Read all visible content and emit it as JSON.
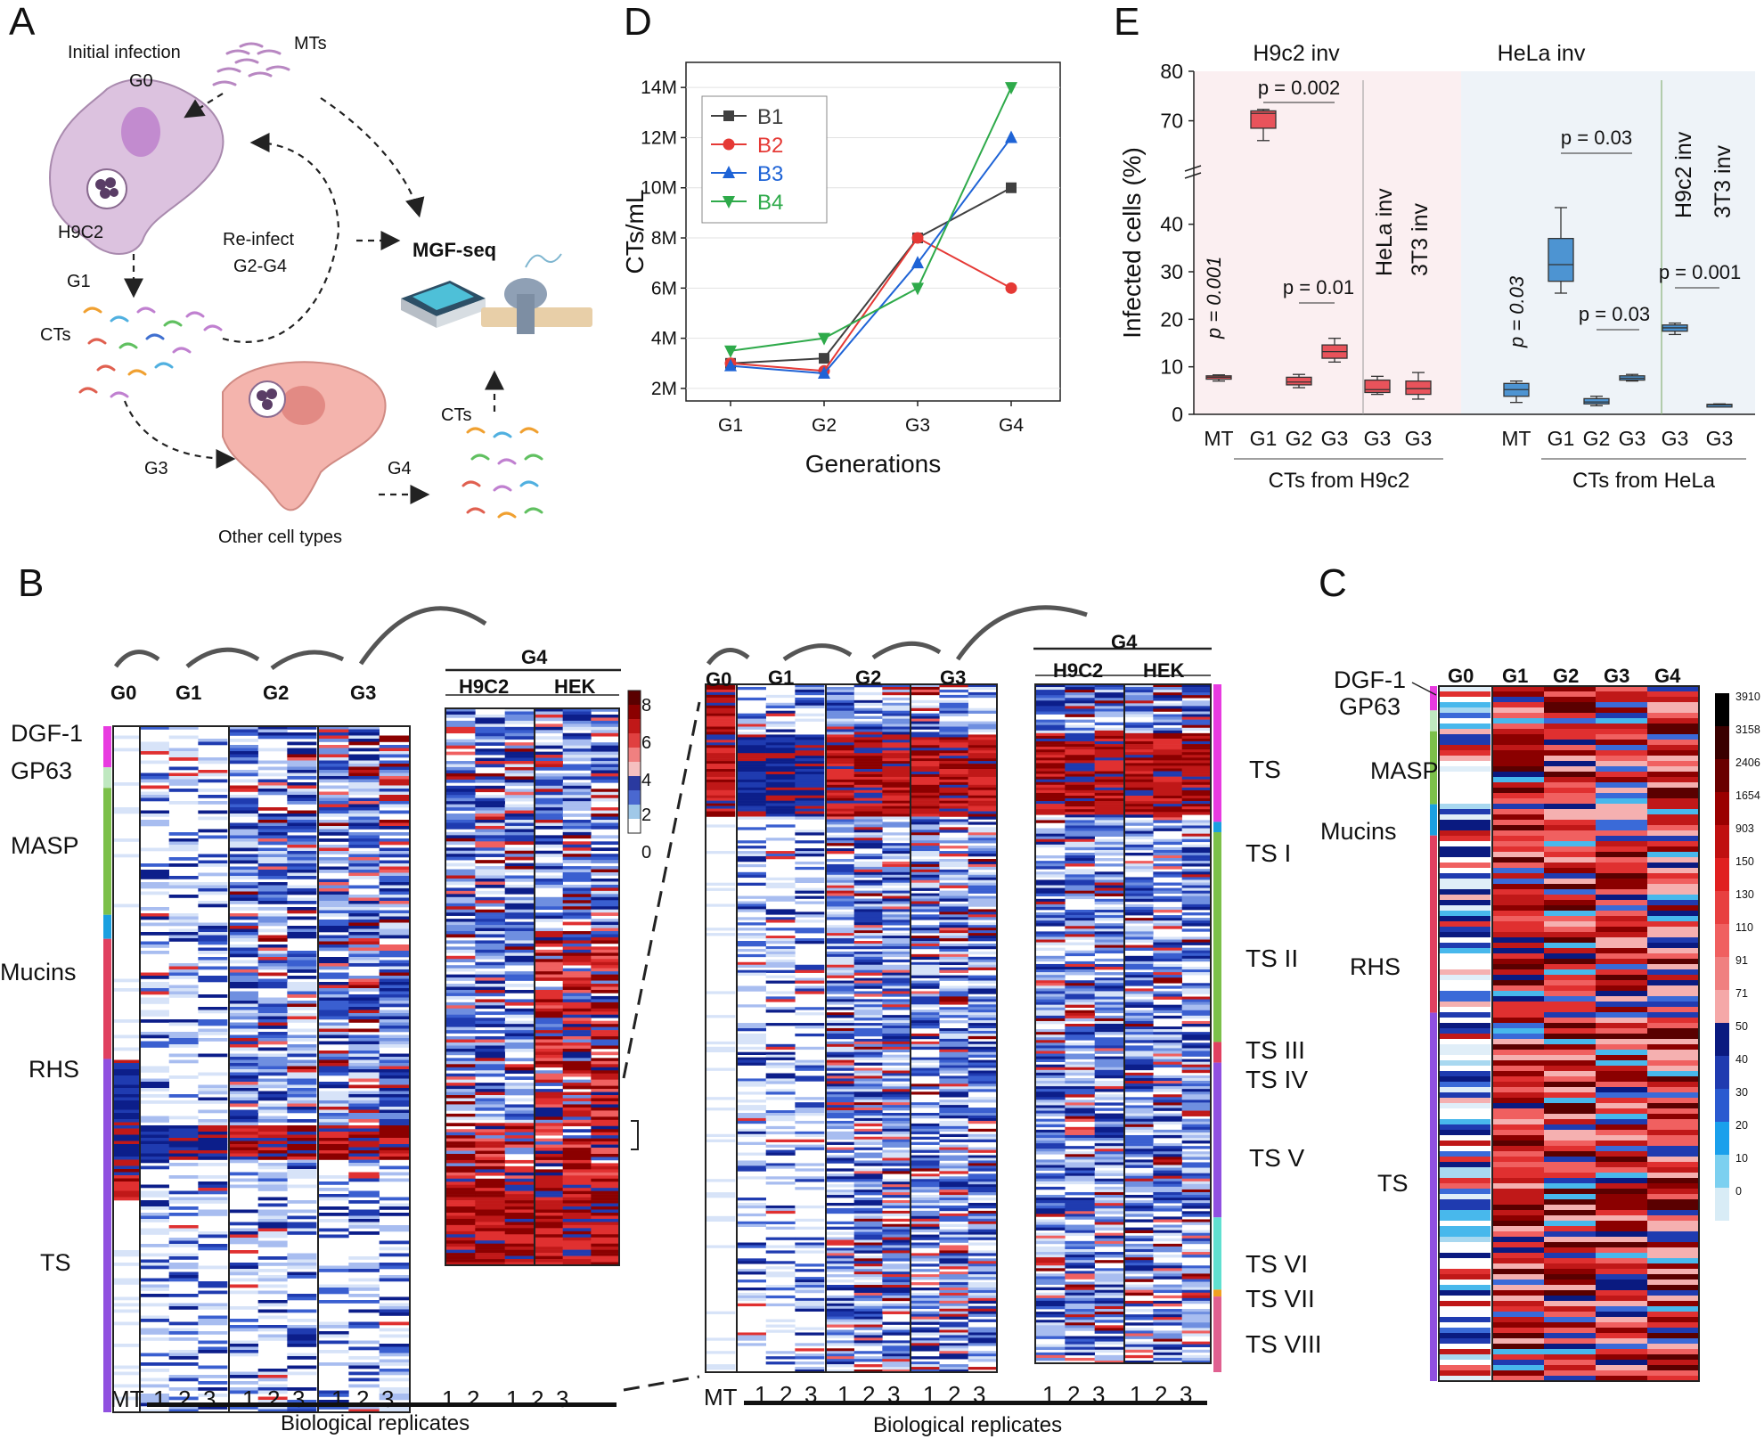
{
  "panels": {
    "A": "A",
    "B": "B",
    "C": "C",
    "D": "D",
    "E": "E"
  },
  "panelA": {
    "initial_infection": "Initial infection",
    "g0": "G0",
    "mts": "MTs",
    "h9c2": "H9C2",
    "g1": "G1",
    "reinfect": "Re-infect",
    "g2g4": "G2-G4",
    "mgfseq": "MGF-seq",
    "cts1": "CTs",
    "cts2": "CTs",
    "g3": "G3",
    "g4": "G4",
    "other_cells": "Other cell types"
  },
  "panelB": {
    "gen_labels": [
      "G0",
      "G1",
      "G2",
      "G3"
    ],
    "g4": "G4",
    "h9c2": "H9C2",
    "hek": "HEK",
    "families": [
      "DGF-1",
      "GP63",
      "MASP",
      "Mucins",
      "RHS",
      "TS"
    ],
    "mt": "MT",
    "reps": [
      "1",
      "2",
      "3"
    ],
    "bio_reps": "Biological replicates",
    "colorbar_ticks": [
      "8",
      "6",
      "4",
      "2",
      "0"
    ]
  },
  "panelB2": {
    "gen_labels": [
      "G0",
      "G1",
      "G2",
      "G3"
    ],
    "g4": "G4",
    "h9c2": "H9C2",
    "hek": "HEK",
    "ts_groups": [
      "TS",
      "TS I",
      "TS II",
      "TS III",
      "TS IV",
      "TS V",
      "TS VI",
      "TS VII",
      "TS VIII"
    ],
    "mt": "MT",
    "reps": [
      "1",
      "2",
      "3"
    ],
    "bio_reps": "Biological replicates"
  },
  "panelC": {
    "gen_labels": [
      "G0",
      "G1",
      "G2",
      "G3",
      "G4"
    ],
    "families": [
      "DGF-1",
      "GP63",
      "MASP",
      "Mucins",
      "RHS",
      "TS"
    ],
    "colorbar_ticks": [
      "3910",
      "3158",
      "2406",
      "1654",
      "903",
      "150",
      "130",
      "110",
      "91",
      "71",
      "50",
      "40",
      "30",
      "20",
      "10",
      "0"
    ]
  },
  "chart_data": [
    {
      "type": "line",
      "panel": "D",
      "x": [
        "G1",
        "G2",
        "G3",
        "G4"
      ],
      "xlabel": "Generations",
      "ylabel": "CTs/mL",
      "ylim": [
        1500000,
        15000000
      ],
      "yticks": [
        "2M",
        "4M",
        "6M",
        "8M",
        "10M",
        "12M",
        "14M"
      ],
      "ytick_values": [
        2000000,
        4000000,
        6000000,
        8000000,
        10000000,
        12000000,
        14000000
      ],
      "legend_position": "top-left",
      "series": [
        {
          "name": "B1",
          "color": "#404040",
          "marker": "square",
          "values": [
            3000000,
            3200000,
            8000000,
            10000000
          ]
        },
        {
          "name": "B2",
          "color": "#e53935",
          "marker": "circle",
          "values": [
            3000000,
            2700000,
            8000000,
            6000000
          ]
        },
        {
          "name": "B3",
          "color": "#1e63d6",
          "marker": "triangle-up",
          "values": [
            2900000,
            2600000,
            7000000,
            12000000
          ]
        },
        {
          "name": "B4",
          "color": "#2eaa4a",
          "marker": "triangle-down",
          "values": [
            3500000,
            4000000,
            6000000,
            14000000
          ]
        }
      ]
    },
    {
      "type": "box",
      "panel": "E",
      "ylabel": "Infected cells (%)",
      "yticks_upper": [
        "70",
        "80"
      ],
      "yticks_lower": [
        "0",
        "10",
        "20",
        "30",
        "40"
      ],
      "group_titles": [
        "H9c2 inv",
        "HeLa inv"
      ],
      "categories": [
        "MT",
        "G1",
        "G2",
        "G3",
        "G3",
        "G3",
        "MT",
        "G1",
        "G2",
        "G3",
        "G3",
        "G3"
      ],
      "group_labels": [
        "CTs from H9c2",
        "CTs from HeLa"
      ],
      "rotated_labels": [
        "HeLa inv",
        "3T3 inv",
        "H9c2 inv",
        "3T3 inv"
      ],
      "colors": [
        "#e8535b",
        "#4d94d2"
      ],
      "boxes": [
        {
          "q1": 7.4,
          "median": 7.8,
          "q3": 8.1,
          "min": 7.0,
          "max": 8.3
        },
        {
          "q1": 68.5,
          "median": 71.5,
          "q3": 72.0,
          "min": 66.0,
          "max": 72.3
        },
        {
          "q1": 6.2,
          "median": 6.8,
          "q3": 7.8,
          "min": 5.6,
          "max": 8.4
        },
        {
          "q1": 11.8,
          "median": 13.2,
          "q3": 14.6,
          "min": 11.0,
          "max": 16.0
        },
        {
          "q1": 4.6,
          "median": 5.2,
          "q3": 7.2,
          "min": 4.2,
          "max": 8.0
        },
        {
          "q1": 4.2,
          "median": 5.4,
          "q3": 7.0,
          "min": 3.2,
          "max": 8.8
        },
        {
          "q1": 3.8,
          "median": 5.2,
          "q3": 6.5,
          "min": 2.5,
          "max": 7.0
        },
        {
          "q1": 28.0,
          "median": 31.5,
          "q3": 37.0,
          "min": 25.5,
          "max": 43.5
        },
        {
          "q1": 2.2,
          "median": 2.6,
          "q3": 3.3,
          "min": 1.8,
          "max": 3.8
        },
        {
          "q1": 7.2,
          "median": 7.6,
          "q3": 8.1,
          "min": 7.0,
          "max": 8.4
        },
        {
          "q1": 17.5,
          "median": 18.2,
          "q3": 18.8,
          "min": 16.8,
          "max": 19.2
        },
        {
          "q1": 1.9,
          "median": 2.0,
          "q3": 2.1,
          "min": 1.8,
          "max": 2.2
        }
      ],
      "pvalues": [
        "p = 0.001",
        "p = 0.002",
        "p = 0.01",
        "p = 0.03",
        "p = 0.03",
        "p = 0.03",
        "p = 0.001"
      ]
    }
  ]
}
